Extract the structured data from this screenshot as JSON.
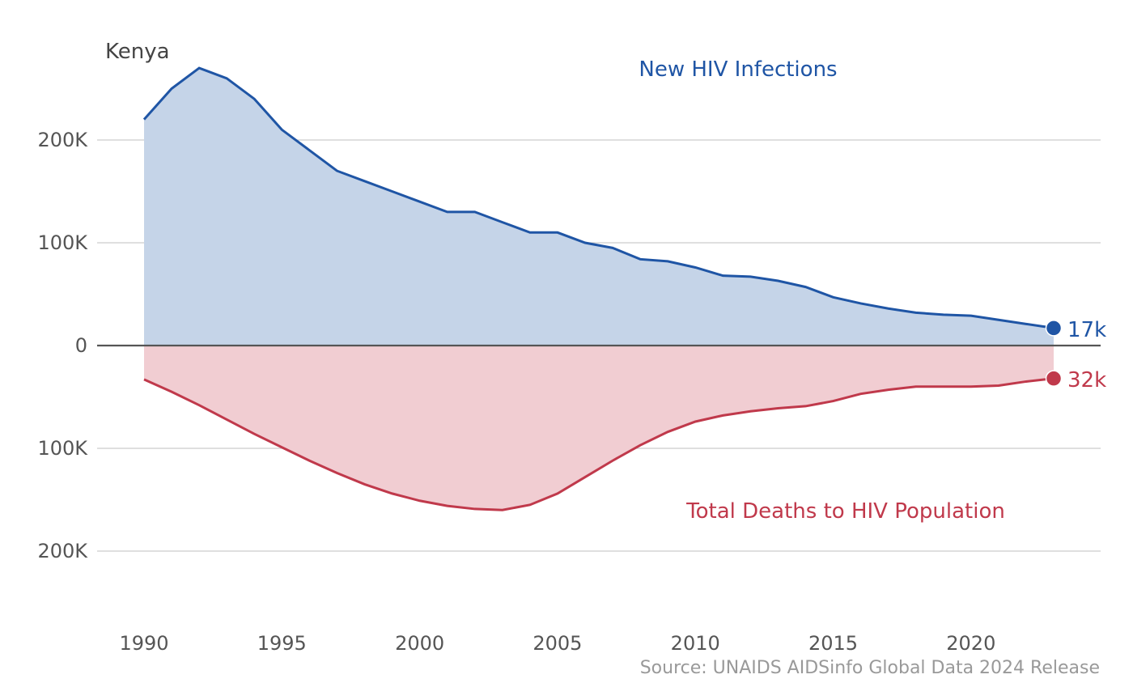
{
  "colors": {
    "infections_line": "#1f55a5",
    "infections_fill": "#c5d4e8",
    "deaths_line": "#c0394b",
    "deaths_fill": "#f1cdd2",
    "grid": "#cccccc",
    "zero_line": "#555555"
  },
  "chart_data": {
    "type": "area",
    "title": "Kenya",
    "source": "Source: UNAIDS AIDSinfo Global Data 2024 Release",
    "x": [
      1990,
      1991,
      1992,
      1993,
      1994,
      1995,
      1996,
      1997,
      1998,
      1999,
      2000,
      2001,
      2002,
      2003,
      2004,
      2005,
      2006,
      2007,
      2008,
      2009,
      2010,
      2011,
      2012,
      2013,
      2014,
      2015,
      2016,
      2017,
      2018,
      2019,
      2020,
      2021,
      2022,
      2023
    ],
    "xlim": [
      1990,
      2023
    ],
    "x_ticks": [
      1990,
      1995,
      2000,
      2005,
      2010,
      2015,
      2020
    ],
    "x_tick_labels": [
      "1990",
      "1995",
      "2000",
      "2005",
      "2010",
      "2015",
      "2020"
    ],
    "ylim": [
      -200000,
      270000
    ],
    "y_ticks": [
      200000,
      100000,
      0,
      -100000,
      -200000
    ],
    "y_tick_labels": [
      "200K",
      "100K",
      "0",
      "100K",
      "200K"
    ],
    "grid": true,
    "series": [
      {
        "name": "New HIV Infections",
        "direction": "up",
        "end_label": "17k",
        "values": [
          220000,
          250000,
          270000,
          260000,
          240000,
          210000,
          190000,
          170000,
          160000,
          150000,
          140000,
          130000,
          130000,
          120000,
          110000,
          110000,
          100000,
          95000,
          84000,
          82000,
          76000,
          68000,
          67000,
          63000,
          57000,
          47000,
          41000,
          36000,
          32000,
          30000,
          29000,
          25000,
          21000,
          17000
        ]
      },
      {
        "name": "Total Deaths to HIV Population",
        "direction": "down",
        "end_label": "32k",
        "values": [
          33000,
          45000,
          58000,
          72000,
          86000,
          99000,
          112000,
          124000,
          135000,
          144000,
          151000,
          156000,
          159000,
          160000,
          155000,
          144000,
          128000,
          112000,
          97000,
          84000,
          74000,
          68000,
          64000,
          61000,
          59000,
          54000,
          47000,
          43000,
          40000,
          40000,
          40000,
          39000,
          35000,
          32000
        ]
      }
    ]
  }
}
